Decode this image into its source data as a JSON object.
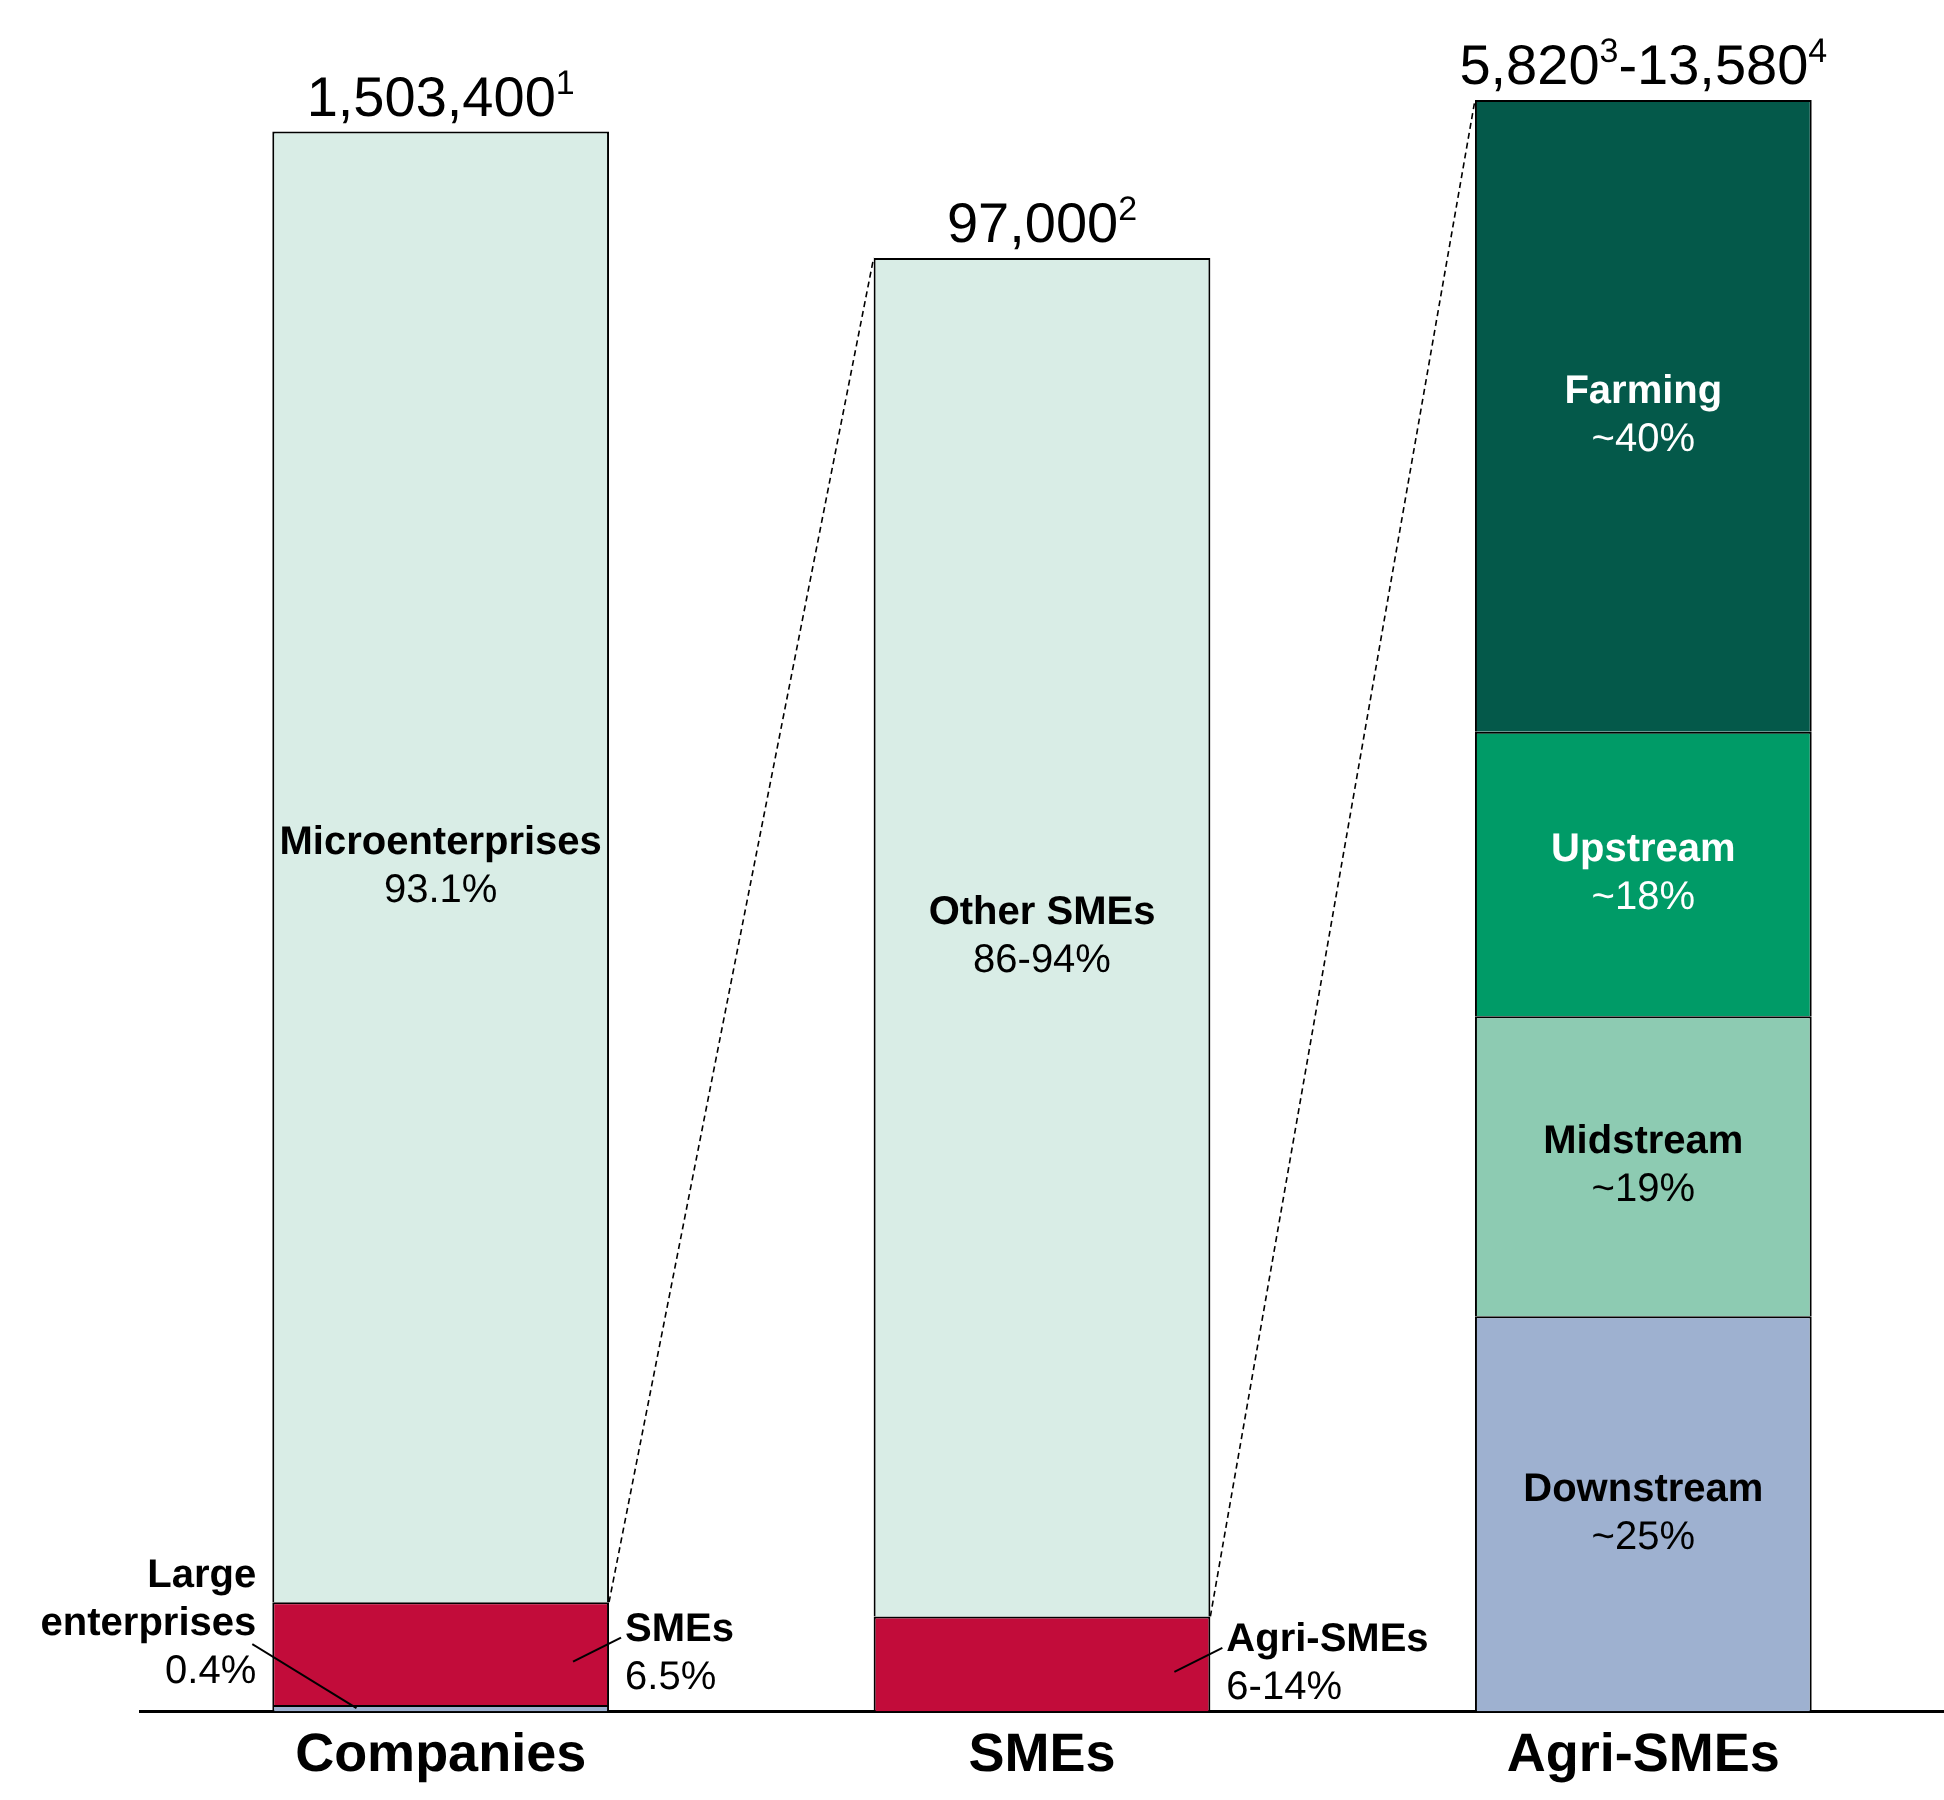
{
  "chart_data": {
    "type": "bar",
    "stacked": true,
    "categories": [
      "Companies",
      "SMEs",
      "Agri-SMEs"
    ],
    "ylim": [
      0,
      102
    ],
    "legend": false,
    "grid": false,
    "tick_labels": "x",
    "totals": [
      "1,503,400$^{1}$",
      "97,000$^{2}$",
      "5,820$^{3}$-13,580$^{4}$"
    ],
    "series": [
      {
        "name": "Large enterprises",
        "color": "#9eb1d0",
        "values": [
          0.4,
          null,
          null
        ],
        "value_labels": [
          "0.4%",
          null,
          null
        ]
      },
      {
        "name": "SMEs",
        "color": "#c20c3a",
        "values": [
          6.5,
          null,
          null
        ],
        "value_labels": [
          "6.5%",
          null,
          null
        ]
      },
      {
        "name": "Microenterprises",
        "color": "#d9ede6",
        "values": [
          93.1,
          null,
          null
        ],
        "value_labels": [
          "93.1%",
          null,
          null
        ]
      },
      {
        "name": "Agri-SMEs",
        "color": "#c20c3a",
        "values": [
          null,
          6,
          null
        ],
        "value_labels": [
          null,
          "6-14%",
          null
        ]
      },
      {
        "name": "Other SMEs",
        "color": "#d9ede6",
        "values": [
          null,
          86,
          null
        ],
        "value_labels": [
          null,
          "86-94%",
          null
        ]
      },
      {
        "name": "Downstream",
        "color": "#9eb1d0",
        "values": [
          null,
          null,
          25
        ],
        "value_labels": [
          null,
          null,
          "~25%"
        ]
      },
      {
        "name": "Midstream",
        "color": "#8dcbb2",
        "values": [
          null,
          null,
          19
        ],
        "value_labels": [
          null,
          null,
          "~19%"
        ]
      },
      {
        "name": "Upstream",
        "color": "#009b67",
        "values": [
          null,
          null,
          18
        ],
        "value_labels": [
          null,
          null,
          "~18%"
        ]
      },
      {
        "name": "Farming",
        "color": "#04594a",
        "values": [
          null,
          null,
          40
        ],
        "value_labels": [
          null,
          null,
          "~40%"
        ]
      }
    ]
  }
}
